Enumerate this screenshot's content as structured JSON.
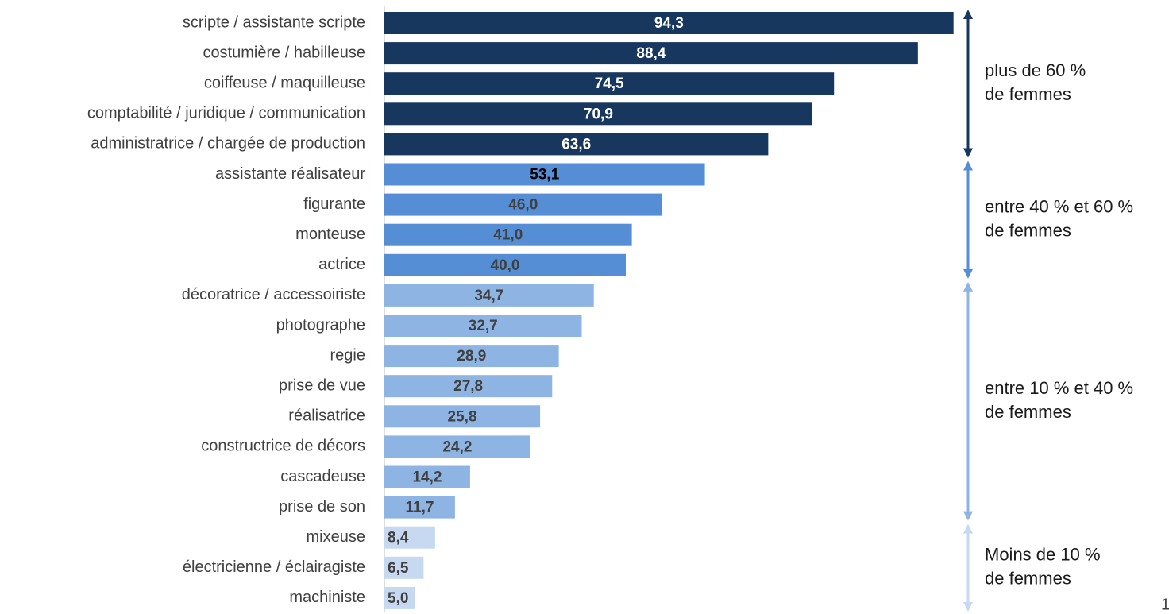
{
  "chart_data": {
    "type": "bar",
    "orientation": "horizontal",
    "categories": [
      "scripte / assistante scripte",
      "costumière / habilleuse",
      "coiffeuse / maquilleuse",
      "comptabilité / juridique / communication",
      "administratrice / chargée de production",
      "assistante réalisateur",
      "figurante",
      "monteuse",
      "actrice",
      "décoratrice / accessoiriste",
      "photographe",
      "regie",
      "prise de vue",
      "réalisatrice",
      "constructrice de décors",
      "cascadeuse",
      "prise de son",
      "mixeuse",
      "électricienne / éclairagiste",
      "machiniste"
    ],
    "values": [
      94.3,
      88.4,
      74.5,
      70.9,
      63.6,
      53.1,
      46.0,
      41.0,
      40.0,
      34.7,
      32.7,
      28.9,
      27.8,
      25.8,
      24.2,
      14.2,
      11.7,
      8.4,
      6.5,
      5.0
    ],
    "value_labels": [
      "94,3",
      "88,4",
      "74,5",
      "70,9",
      "63,6",
      "53,1",
      "46,0",
      "41,0",
      "40,0",
      "34,7",
      "32,7",
      "28,9",
      "27,8",
      "25,8",
      "24,2",
      "14,2",
      "11,7",
      "8,4",
      "6,5",
      "5,0"
    ],
    "colors": [
      "#17375e",
      "#17375e",
      "#17375e",
      "#17375e",
      "#17375e",
      "#558ed5",
      "#558ed5",
      "#558ed5",
      "#558ed5",
      "#8eb4e3",
      "#8eb4e3",
      "#8eb4e3",
      "#8eb4e3",
      "#8eb4e3",
      "#8eb4e3",
      "#8eb4e3",
      "#8eb4e3",
      "#c6d9f1",
      "#c6d9f1",
      "#c6d9f1"
    ],
    "label_colors": [
      "#ffffff",
      "#ffffff",
      "#ffffff",
      "#ffffff",
      "#ffffff",
      "#000000",
      "#404040",
      "#404040",
      "#404040",
      "#404040",
      "#404040",
      "#404040",
      "#404040",
      "#404040",
      "#404040",
      "#404040",
      "#404040",
      "#404040",
      "#404040",
      "#404040"
    ],
    "annotations": [
      {
        "text": [
          "plus de 60 %",
          "de femmes"
        ],
        "color": "#17375e"
      },
      {
        "text": [
          "entre 40 % et 60 %",
          "de femmes"
        ],
        "color": "#558ed5"
      },
      {
        "text": [
          "entre 10 % et 40 %",
          "de femmes"
        ],
        "color": "#8eb4e3"
      },
      {
        "text": [
          "Moins de 10 %",
          "de femmes"
        ],
        "color": "#c6d9f1"
      }
    ],
    "page_number": "1"
  }
}
